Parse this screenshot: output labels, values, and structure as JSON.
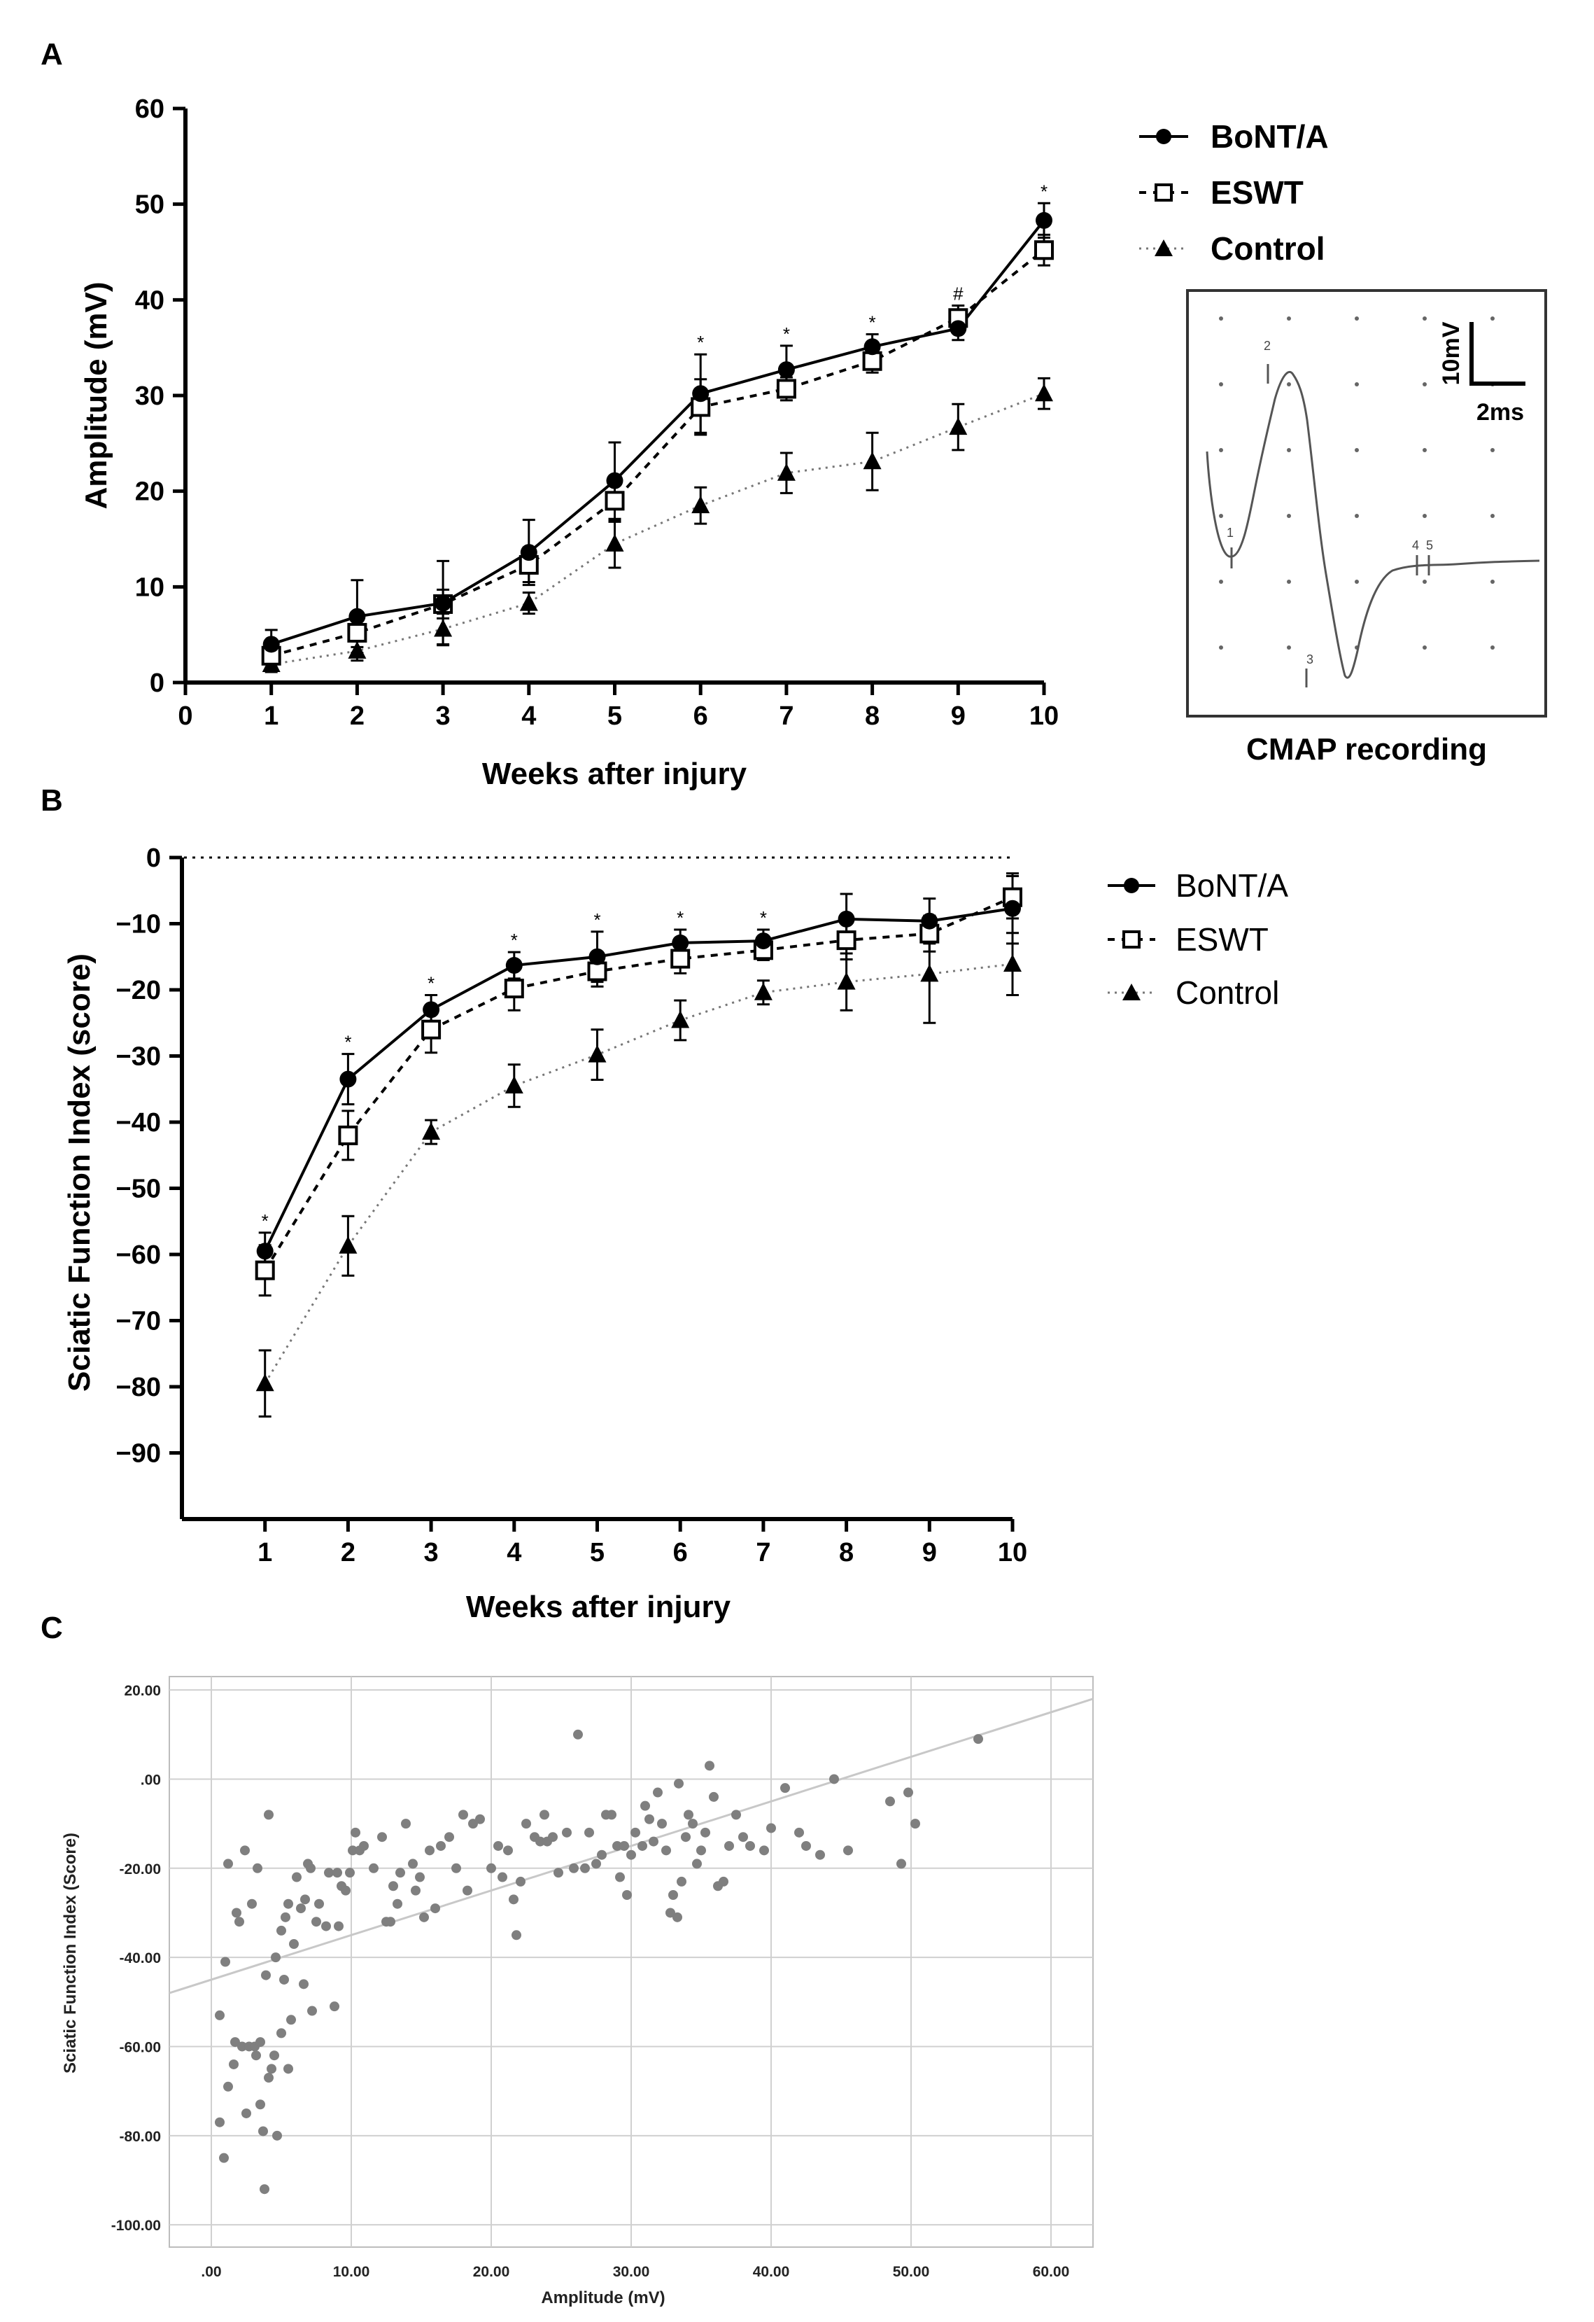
{
  "chart_data": [
    {
      "panel": "A",
      "type": "line",
      "title": "",
      "xlabel": "Weeks after injury",
      "ylabel": "Amplitude (mV)",
      "xlim": [
        0,
        10
      ],
      "ylim": [
        0,
        60
      ],
      "xticks": [
        0,
        1,
        2,
        3,
        4,
        5,
        6,
        7,
        8,
        9,
        10
      ],
      "yticks": [
        0,
        10,
        20,
        30,
        40,
        50,
        60
      ],
      "x": [
        1,
        2,
        3,
        4,
        5,
        6,
        7,
        8,
        9,
        10
      ],
      "series": [
        {
          "name": "BoNT/A",
          "marker": "circle-filled",
          "line": "solid",
          "values": [
            4.0,
            6.9,
            8.3,
            13.6,
            21.1,
            30.2,
            32.7,
            35.1,
            37.0,
            48.3
          ],
          "errors": [
            1.5,
            3.8,
            4.4,
            3.4,
            4.0,
            4.1,
            2.5,
            1.3,
            1.2,
            1.8
          ]
        },
        {
          "name": "ESWT",
          "marker": "square-open",
          "line": "dashed",
          "values": [
            2.8,
            5.2,
            8.2,
            12.3,
            19.0,
            28.8,
            30.7,
            33.6,
            38.1,
            45.2
          ],
          "errors": [
            1.2,
            1.5,
            1.5,
            1.8,
            2.2,
            2.9,
            1.2,
            1.2,
            1.3,
            1.6
          ]
        },
        {
          "name": "Control",
          "marker": "triangle-filled",
          "line": "dotted",
          "values": [
            1.9,
            3.3,
            5.6,
            8.3,
            14.5,
            18.5,
            21.9,
            23.1,
            26.7,
            30.2
          ],
          "errors": [
            0.8,
            1.0,
            1.6,
            1.1,
            2.5,
            1.9,
            2.1,
            3.0,
            2.4,
            1.6
          ]
        }
      ],
      "annotations": [
        {
          "x": 6,
          "text": "*"
        },
        {
          "x": 7,
          "text": "*"
        },
        {
          "x": 8,
          "text": "*"
        },
        {
          "x": 9,
          "text": "#"
        },
        {
          "x": 10,
          "text": "*"
        }
      ],
      "legend_position": "right"
    },
    {
      "panel": "B",
      "type": "line",
      "title": "",
      "xlabel": "Weeks after injury",
      "ylabel": "Sciatic Function Index (score)",
      "xlim": [
        0,
        10
      ],
      "ylim": [
        -100,
        0
      ],
      "xticks": [
        1,
        2,
        3,
        4,
        5,
        6,
        7,
        8,
        9,
        10
      ],
      "yticks": [
        0,
        -10,
        -20,
        -30,
        -40,
        -50,
        -60,
        -70,
        -80,
        -90
      ],
      "x": [
        1,
        2,
        3,
        4,
        5,
        6,
        7,
        8,
        9,
        10
      ],
      "series": [
        {
          "name": "BoNT/A",
          "marker": "circle-filled",
          "line": "solid",
          "values": [
            -59.5,
            -33.5,
            -23.0,
            -16.3,
            -15.0,
            -12.9,
            -12.6,
            -9.3,
            -9.6,
            -7.7
          ],
          "errors": [
            2.8,
            3.8,
            2.2,
            2.0,
            3.8,
            2.0,
            1.7,
            3.8,
            3.4,
            5.3
          ]
        },
        {
          "name": "ESWT",
          "marker": "square-open",
          "line": "dashed",
          "values": [
            -62.4,
            -42.0,
            -26.0,
            -19.8,
            -17.2,
            -15.3,
            -14.0,
            -12.5,
            -11.5,
            -6.0
          ],
          "errors": [
            3.8,
            3.7,
            3.5,
            3.3,
            2.3,
            2.2,
            1.5,
            2.9,
            2.7,
            3.2
          ]
        },
        {
          "name": "Control",
          "marker": "triangle-filled",
          "line": "dotted",
          "values": [
            -79.5,
            -58.7,
            -41.5,
            -34.5,
            -29.8,
            -24.6,
            -20.4,
            -18.8,
            -17.6,
            -16.1
          ],
          "errors": [
            5.0,
            4.5,
            1.8,
            3.2,
            3.8,
            3.0,
            1.8,
            4.3,
            7.4,
            4.7
          ]
        }
      ],
      "annotations": [
        {
          "x": 1,
          "text": "*"
        },
        {
          "x": 2,
          "text": "*"
        },
        {
          "x": 3,
          "text": "*"
        },
        {
          "x": 4,
          "text": "*"
        },
        {
          "x": 5,
          "text": "*"
        },
        {
          "x": 6,
          "text": "*"
        },
        {
          "x": 7,
          "text": "*"
        }
      ],
      "zero_line": "dotted",
      "legend_position": "right"
    },
    {
      "panel": "C",
      "type": "scatter",
      "title": "",
      "xlabel": "Amplitude (mV)",
      "ylabel": "Sciatic Function Index (Score)",
      "xlim": [
        -3,
        63
      ],
      "ylim": [
        -105,
        23
      ],
      "xtick_labels": [
        ".00",
        "10.00",
        "20.00",
        "30.00",
        "40.00",
        "50.00",
        "60.00"
      ],
      "ytick_labels": [
        "20.00",
        ".00",
        "-20.00",
        "-40.00",
        "-60.00",
        "-80.00",
        "-100.00"
      ],
      "grid": true,
      "regression_line": {
        "x": [
          -3,
          63
        ],
        "y": [
          -48.0,
          18.0
        ]
      },
      "points": [
        [
          0.6,
          -53
        ],
        [
          0.6,
          -77
        ],
        [
          0.9,
          -85
        ],
        [
          1.0,
          -41
        ],
        [
          1.2,
          -69
        ],
        [
          1.2,
          -19
        ],
        [
          1.6,
          -64
        ],
        [
          1.7,
          -59
        ],
        [
          1.8,
          -30
        ],
        [
          2.0,
          -32
        ],
        [
          2.2,
          -60
        ],
        [
          2.4,
          -16
        ],
        [
          2.5,
          -75
        ],
        [
          2.7,
          -60
        ],
        [
          2.9,
          -28
        ],
        [
          3.1,
          -60
        ],
        [
          3.2,
          -62
        ],
        [
          3.3,
          -20
        ],
        [
          3.5,
          -59
        ],
        [
          3.5,
          -73
        ],
        [
          3.7,
          -79
        ],
        [
          3.8,
          -92
        ],
        [
          3.9,
          -44
        ],
        [
          4.1,
          -8
        ],
        [
          4.1,
          -67
        ],
        [
          4.3,
          -65
        ],
        [
          4.5,
          -62
        ],
        [
          4.6,
          -40
        ],
        [
          4.7,
          -80
        ],
        [
          5.0,
          -34
        ],
        [
          5.0,
          -57
        ],
        [
          5.2,
          -45
        ],
        [
          5.3,
          -31
        ],
        [
          5.5,
          -28
        ],
        [
          5.5,
          -65
        ],
        [
          5.7,
          -54
        ],
        [
          5.9,
          -37
        ],
        [
          6.1,
          -22
        ],
        [
          6.4,
          -29
        ],
        [
          6.6,
          -46
        ],
        [
          6.7,
          -27
        ],
        [
          6.9,
          -19
        ],
        [
          7.1,
          -20
        ],
        [
          7.2,
          -52
        ],
        [
          7.5,
          -32
        ],
        [
          7.7,
          -28
        ],
        [
          8.2,
          -33
        ],
        [
          8.4,
          -21
        ],
        [
          8.8,
          -51
        ],
        [
          9.0,
          -21
        ],
        [
          9.1,
          -33
        ],
        [
          9.3,
          -24
        ],
        [
          9.6,
          -25
        ],
        [
          9.9,
          -21
        ],
        [
          10.1,
          -16
        ],
        [
          10.3,
          -12
        ],
        [
          10.6,
          -16
        ],
        [
          10.9,
          -15
        ],
        [
          11.6,
          -20
        ],
        [
          12.2,
          -13
        ],
        [
          12.5,
          -32
        ],
        [
          12.8,
          -32
        ],
        [
          13.0,
          -24
        ],
        [
          13.3,
          -28
        ],
        [
          13.5,
          -21
        ],
        [
          13.9,
          -10
        ],
        [
          14.4,
          -19
        ],
        [
          14.6,
          -25
        ],
        [
          14.9,
          -22
        ],
        [
          15.2,
          -31
        ],
        [
          15.6,
          -16
        ],
        [
          16.0,
          -29
        ],
        [
          16.4,
          -15
        ],
        [
          17.0,
          -13
        ],
        [
          17.5,
          -20
        ],
        [
          18.0,
          -8
        ],
        [
          18.3,
          -25
        ],
        [
          18.7,
          -10
        ],
        [
          19.2,
          -9
        ],
        [
          20.0,
          -20
        ],
        [
          20.5,
          -15
        ],
        [
          20.8,
          -22
        ],
        [
          21.2,
          -16
        ],
        [
          21.6,
          -27
        ],
        [
          21.8,
          -35
        ],
        [
          22.1,
          -23
        ],
        [
          22.5,
          -10
        ],
        [
          23.1,
          -13
        ],
        [
          23.5,
          -14
        ],
        [
          23.8,
          -8
        ],
        [
          24.0,
          -14
        ],
        [
          24.4,
          -13
        ],
        [
          24.8,
          -21
        ],
        [
          25.4,
          -12
        ],
        [
          25.9,
          -20
        ],
        [
          26.2,
          10
        ],
        [
          26.7,
          -20
        ],
        [
          27.0,
          -12
        ],
        [
          27.5,
          -19
        ],
        [
          27.9,
          -17
        ],
        [
          28.2,
          -8
        ],
        [
          28.6,
          -8
        ],
        [
          29.0,
          -15
        ],
        [
          29.2,
          -22
        ],
        [
          29.5,
          -15
        ],
        [
          29.7,
          -26
        ],
        [
          30.0,
          -17
        ],
        [
          30.3,
          -12
        ],
        [
          30.8,
          -15
        ],
        [
          31.0,
          -6
        ],
        [
          31.3,
          -9
        ],
        [
          31.6,
          -14
        ],
        [
          31.9,
          -3
        ],
        [
          32.2,
          -10
        ],
        [
          32.5,
          -16
        ],
        [
          32.8,
          -30
        ],
        [
          33.0,
          -26
        ],
        [
          33.3,
          -31
        ],
        [
          33.4,
          -1
        ],
        [
          33.6,
          -23
        ],
        [
          33.9,
          -13
        ],
        [
          34.1,
          -8
        ],
        [
          34.4,
          -10
        ],
        [
          34.7,
          -19
        ],
        [
          35.0,
          -16
        ],
        [
          35.3,
          -12
        ],
        [
          35.6,
          3
        ],
        [
          35.9,
          -4
        ],
        [
          36.2,
          -24
        ],
        [
          36.6,
          -23
        ],
        [
          37.0,
          -15
        ],
        [
          37.5,
          -8
        ],
        [
          38.0,
          -13
        ],
        [
          38.5,
          -15
        ],
        [
          39.5,
          -16
        ],
        [
          40.0,
          -11
        ],
        [
          41.0,
          -2
        ],
        [
          42.0,
          -12
        ],
        [
          42.5,
          -15
        ],
        [
          43.5,
          -17
        ],
        [
          44.5,
          0
        ],
        [
          45.5,
          -16
        ],
        [
          48.5,
          -5
        ],
        [
          49.3,
          -19
        ],
        [
          49.8,
          -3
        ],
        [
          50.3,
          -10
        ],
        [
          54.8,
          9
        ]
      ]
    }
  ],
  "panel_letters": {
    "a": "A",
    "b": "B",
    "c": "C"
  },
  "legend": {
    "bonta": "BoNT/A",
    "eswt": "ESWT",
    "control": "Control"
  },
  "inset": {
    "caption": "CMAP recording",
    "scale_v": "10mV",
    "scale_t": "2ms",
    "marker_labels": [
      "1",
      "2",
      "3",
      "4",
      "5"
    ]
  },
  "colors": {
    "axis": "#000000",
    "series": "#000000",
    "scatter_point": "#7f7f7f",
    "regression": "#c8c8c8",
    "grid": "#d0d0d0"
  }
}
